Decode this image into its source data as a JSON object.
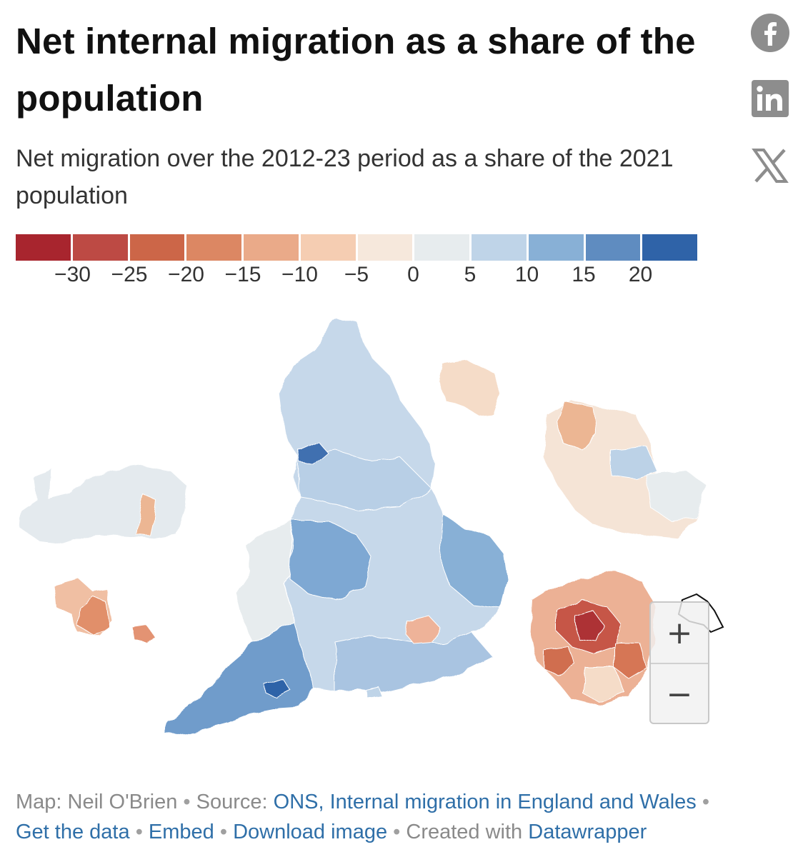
{
  "title": "Net internal migration as a share of the population",
  "subtitle": "Net migration over the 2012-23 period as a share of the 2021 population",
  "share": {
    "facebook": "facebook-icon",
    "linkedin": "linkedin-icon",
    "x": "x-icon"
  },
  "legend": {
    "colors": [
      "#a8252e",
      "#bd4a44",
      "#cc6648",
      "#dc8763",
      "#eaaa89",
      "#f5cdb2",
      "#f6e8dc",
      "#e7ecee",
      "#bfd4e8",
      "#88b0d6",
      "#5f8cc0",
      "#2f63a8"
    ],
    "ticks": [
      "−30",
      "−25",
      "−20",
      "−15",
      "−10",
      "−5",
      "0",
      "5",
      "10",
      "15",
      "20"
    ]
  },
  "map": {
    "regions": [
      {
        "name": "england-main",
        "value": 6
      },
      {
        "name": "wales",
        "value": 2
      },
      {
        "name": "isles-of-scilly",
        "value": -12
      },
      {
        "name": "isle-of-wight",
        "value": 6
      },
      {
        "name": "manchester-inset",
        "value": -4
      },
      {
        "name": "birmingham-inset",
        "value": 1
      },
      {
        "name": "london-inset",
        "value": -20
      },
      {
        "name": "tyneside-inset",
        "value": -4
      }
    ]
  },
  "zoom": {
    "in_label": "+",
    "out_label": "−"
  },
  "footer": {
    "map_prefix": "Map:",
    "author": "Neil O'Brien",
    "source_prefix": "Source:",
    "source_link": "ONS, Internal migration in England and Wales",
    "get_data": "Get the data",
    "embed": "Embed",
    "download": "Download image",
    "created_prefix": "Created with",
    "tool": "Datawrapper",
    "separator": "•"
  }
}
